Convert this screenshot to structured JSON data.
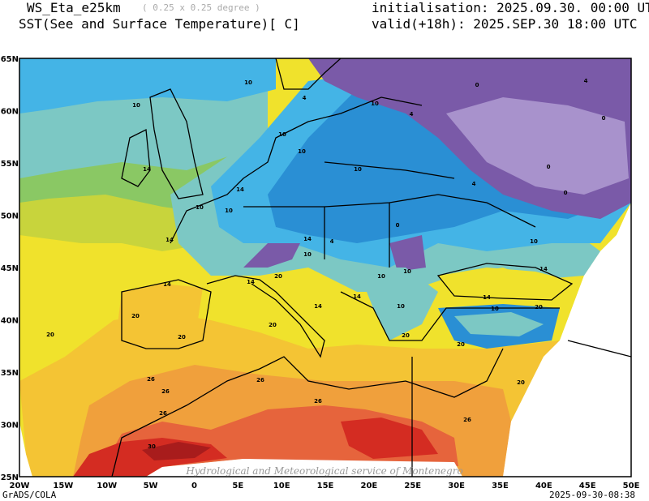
{
  "header": {
    "model": "WS_Eta_e25km",
    "resolution": "( 0.25 x 0.25 degree )",
    "variable": "SST(See and Surface Temperature)[ C]",
    "initialisation": "initialisation: 2025.09.30. 00:00 UTC",
    "valid": "valid(+18h): 2025.SEP.30 18:00 UTC"
  },
  "map": {
    "lat_labels": [
      "65N",
      "60N",
      "55N",
      "50N",
      "45N",
      "40N",
      "35N",
      "30N",
      "25N"
    ],
    "lon_labels": [
      "20W",
      "15W",
      "10W",
      "5W",
      "0",
      "5E",
      "10E",
      "15E",
      "20E",
      "25E",
      "30E",
      "35E",
      "40E",
      "45E",
      "50E"
    ],
    "contour_labels": [
      "10",
      "10",
      "4",
      "10",
      "4",
      "0",
      "4",
      "0",
      "10",
      "10",
      "0",
      "14",
      "10",
      "0",
      "14",
      "10",
      "10",
      "4",
      "0",
      "14",
      "14",
      "10",
      "4",
      "10",
      "14",
      "14",
      "14",
      "10",
      "10",
      "14",
      "14",
      "10",
      "20",
      "20",
      "20",
      "20",
      "20",
      "14",
      "10",
      "20",
      "20",
      "20",
      "20",
      "26",
      "26",
      "26",
      "26",
      "26",
      "30",
      "26"
    ],
    "watermark": "Hydrological and Meteorological service of Montenegro",
    "colors": {
      "dark_purple": "#7a5aa8",
      "light_purple": "#a892cc",
      "blue": "#2a8fd4",
      "light_blue": "#44b4e6",
      "teal": "#7cc8c4",
      "green": "#8ac864",
      "yellow_green": "#c8d43c",
      "yellow": "#f0e22c",
      "gold": "#f4c434",
      "orange": "#f0a03c",
      "orange_red": "#e6643c",
      "red": "#d42c22",
      "dark_red": "#a81c1c"
    }
  },
  "footer": {
    "software": "GrADS/COLA",
    "timestamp": "2025-09-30-08:38"
  }
}
